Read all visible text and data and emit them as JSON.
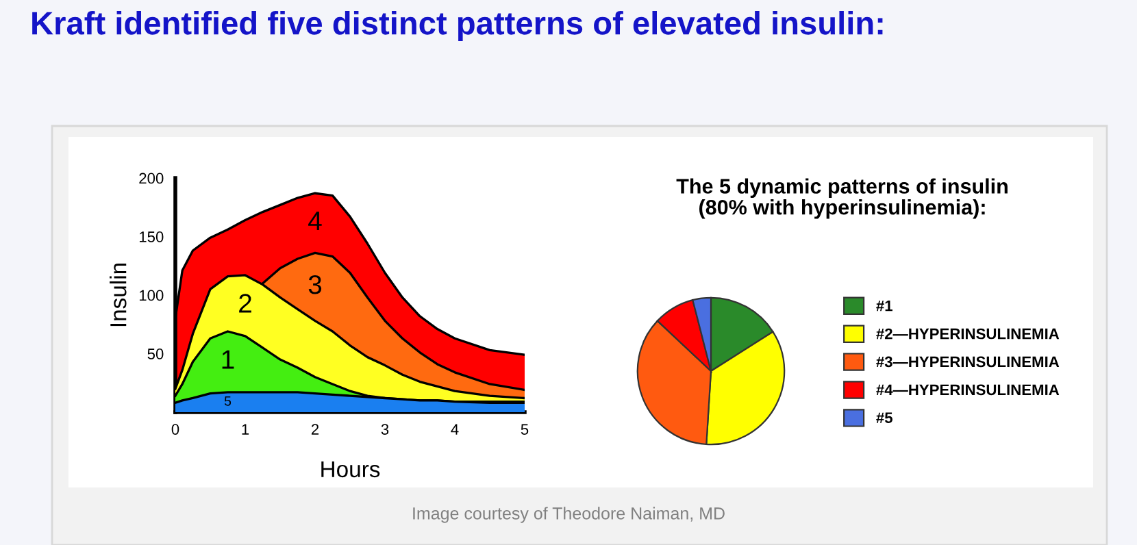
{
  "chart_data": [
    {
      "type": "area",
      "title": "Kraft identified five distinct patterns of elevated insulin:",
      "xlabel": "Hours",
      "ylabel": "Insulin",
      "x": [
        0,
        0.1,
        0.25,
        0.5,
        0.75,
        1,
        1.25,
        1.5,
        1.75,
        2,
        2.25,
        2.5,
        2.75,
        3,
        3.25,
        3.5,
        3.75,
        4,
        4.5,
        5
      ],
      "series": [
        {
          "name": "4",
          "color": "#ff0000",
          "values": [
            80,
            121,
            138,
            149,
            156,
            164,
            171,
            177,
            183,
            187,
            185,
            167,
            144,
            119,
            98,
            82,
            71,
            63,
            53,
            49
          ]
        },
        {
          "name": "3",
          "color": "#ff6a10",
          "values": [
            null,
            null,
            null,
            null,
            null,
            null,
            110,
            123,
            131,
            136,
            133,
            119,
            98,
            78,
            63,
            51,
            41,
            34,
            24,
            19
          ]
        },
        {
          "name": "2",
          "color": "#ffff22",
          "values": [
            20,
            36,
            67,
            105,
            116,
            117,
            109,
            98,
            88,
            78,
            69,
            57,
            47,
            40,
            32,
            26,
            22,
            18,
            14,
            12
          ]
        },
        {
          "name": "1",
          "color": "#44ee11",
          "values": [
            14,
            24,
            43,
            63,
            69,
            65,
            55,
            45,
            38,
            30,
            24,
            18,
            14,
            12,
            11,
            10,
            10,
            9,
            9,
            9
          ]
        },
        {
          "name": "5",
          "color": "#1a7ff0",
          "values": [
            8,
            10,
            12,
            16,
            17,
            17,
            17,
            17,
            17,
            16,
            15,
            14,
            13,
            12,
            11,
            10,
            10,
            9,
            8,
            8
          ]
        }
      ],
      "xlim": [
        0,
        5
      ],
      "ylim": [
        0,
        200
      ],
      "xticks": [
        0,
        1,
        2,
        3,
        4,
        5
      ],
      "yticks": [
        50,
        100,
        150,
        200
      ],
      "legend": false,
      "grid": false,
      "annotations": [
        "Image courtesy of Theodore Naiman, MD"
      ]
    },
    {
      "type": "pie",
      "title": "The 5 dynamic patterns of insulin\n(80% with hyperinsulinemia):",
      "categories": [
        "#1",
        "#2—HYPERINSULINEMIA",
        "#3—HYPERINSULINEMIA",
        "#4—HYPERINSULINEMIA",
        "#5"
      ],
      "values": [
        16,
        35,
        36,
        9,
        4
      ],
      "colors": [
        "#2a8a2a",
        "#ffff00",
        "#ff5a10",
        "#ff0000",
        "#4a6fe0"
      ],
      "legend": "right"
    }
  ]
}
